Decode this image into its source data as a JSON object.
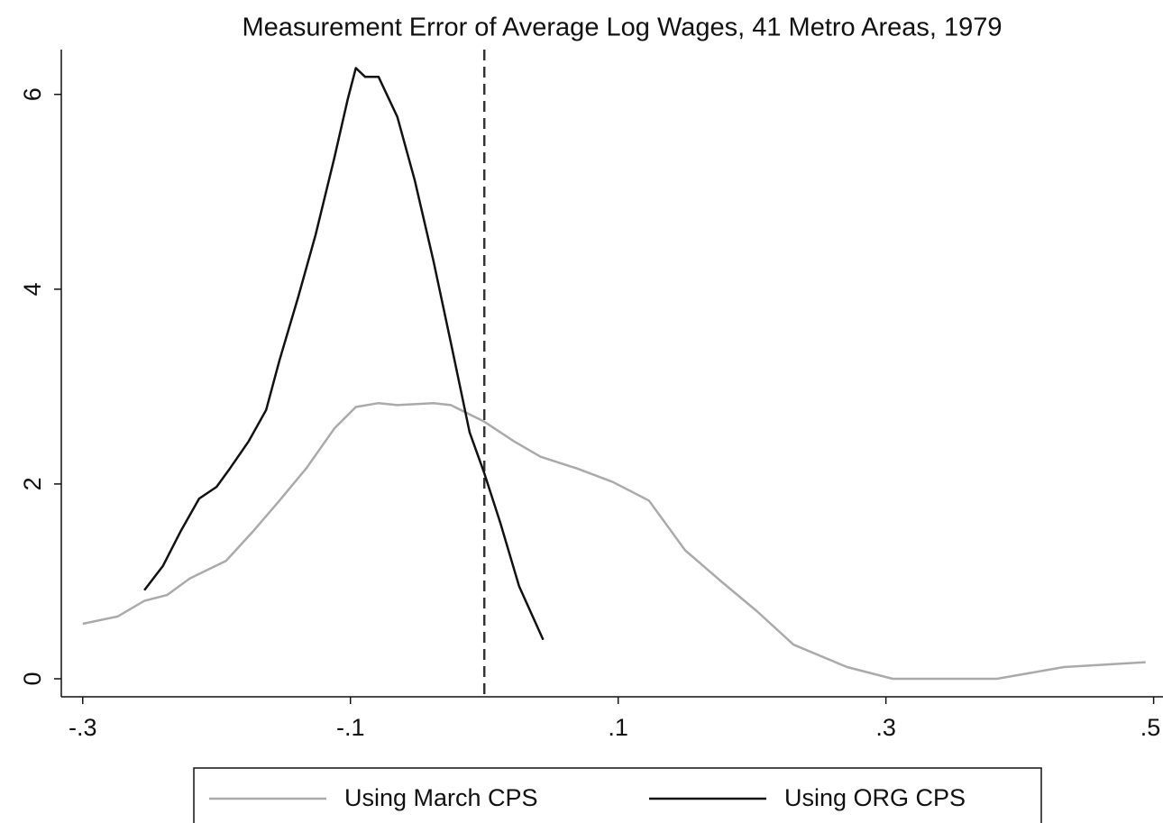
{
  "chart_data": {
    "type": "line",
    "title": "Measurement Error of Average Log Wages, 41 Metro Areas, 1979",
    "series": [
      {
        "name": "Using March CPS",
        "color": "#aaaaaa",
        "x": [
          -0.3,
          -0.274,
          -0.254,
          -0.237,
          -0.22,
          -0.193,
          -0.173,
          -0.153,
          -0.133,
          -0.112,
          -0.096,
          -0.079,
          -0.065,
          -0.038,
          -0.025,
          0.0,
          0.022,
          0.042,
          0.069,
          0.096,
          0.123,
          0.15,
          0.177,
          0.204,
          0.231,
          0.271,
          0.305,
          0.339,
          0.383,
          0.433,
          0.494
        ],
        "values": [
          0.565,
          0.64,
          0.8,
          0.86,
          1.03,
          1.21,
          1.51,
          1.83,
          2.16,
          2.57,
          2.79,
          2.83,
          2.81,
          2.83,
          2.81,
          2.64,
          2.44,
          2.28,
          2.16,
          2.02,
          1.83,
          1.32,
          1.0,
          0.69,
          0.35,
          0.12,
          0,
          0,
          0,
          0.12,
          0.17
        ]
      },
      {
        "name": "Using ORG CPS",
        "color": "#111111",
        "x": [
          -0.254,
          -0.24,
          -0.227,
          -0.213,
          -0.2,
          -0.19,
          -0.176,
          -0.163,
          -0.153,
          -0.139,
          -0.126,
          -0.112,
          -0.102,
          -0.096,
          -0.089,
          -0.079,
          -0.065,
          -0.052,
          -0.038,
          -0.025,
          -0.011,
          0.0,
          0.012,
          0.026,
          0.044
        ],
        "values": [
          0.91,
          1.16,
          1.51,
          1.85,
          1.97,
          2.16,
          2.44,
          2.76,
          3.27,
          3.92,
          4.56,
          5.35,
          5.95,
          6.27,
          6.18,
          6.18,
          5.77,
          5.12,
          4.29,
          3.45,
          2.53,
          2.11,
          1.6,
          0.95,
          0.4
        ]
      }
    ],
    "vline": 0,
    "xlim": [
      -0.316,
      0.507
    ],
    "ylim": [
      -0.185,
      6.46
    ],
    "xticks": [
      {
        "value": -0.3,
        "label": "-.3"
      },
      {
        "value": -0.1,
        "label": "-.1"
      },
      {
        "value": 0.1,
        "label": ".1"
      },
      {
        "value": 0.3,
        "label": ".3"
      },
      {
        "value": 0.5,
        "label": ".5"
      }
    ],
    "yticks": [
      0,
      2,
      4,
      6
    ]
  }
}
